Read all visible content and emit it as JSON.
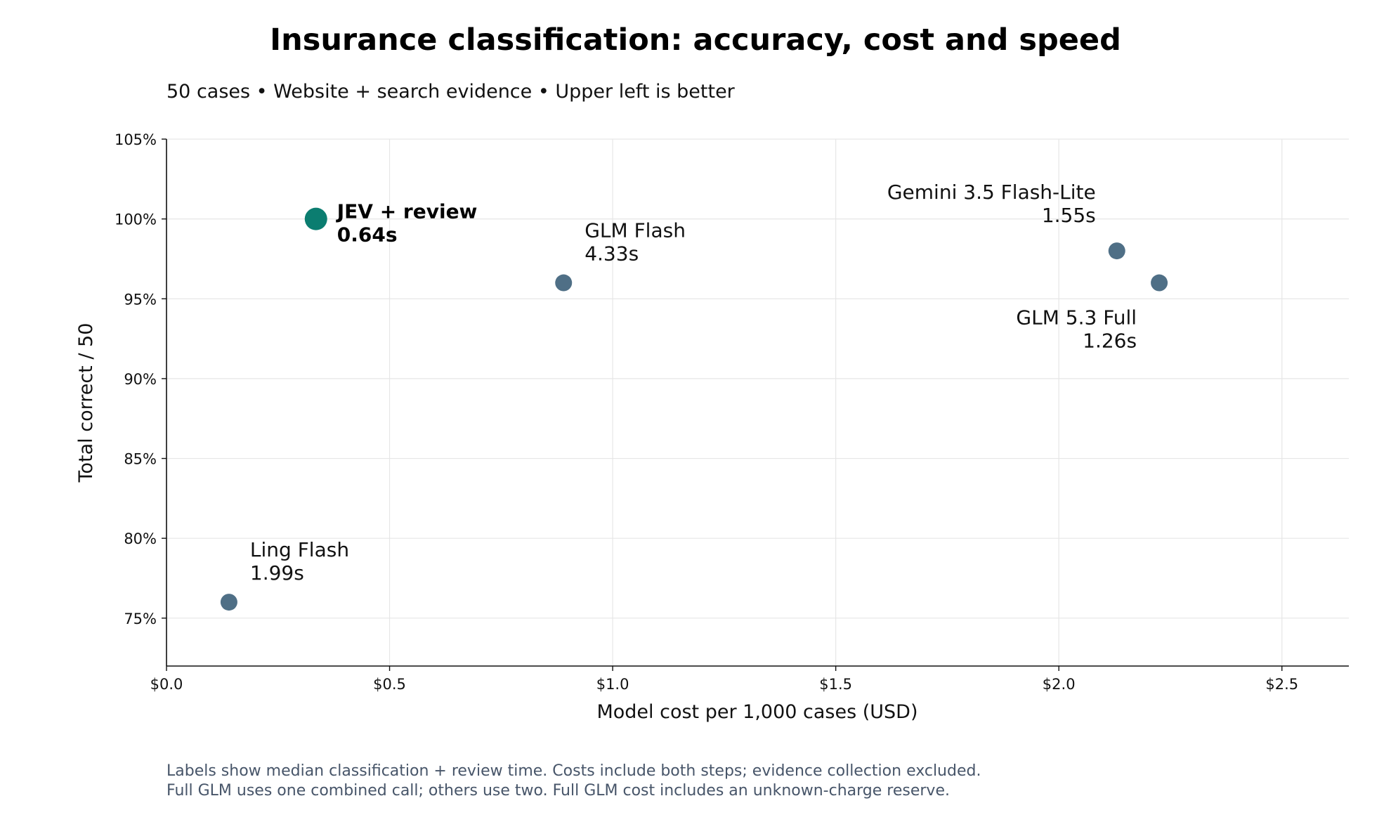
{
  "chart_data": {
    "type": "scatter",
    "title": "Insurance classification: accuracy, cost and speed",
    "subtitle": "50 cases • Website + search evidence • Upper left is better",
    "xlabel": "Model cost per 1,000 cases (USD)",
    "ylabel": "Total correct / 50",
    "xlim": [
      0,
      2.65
    ],
    "ylim": [
      72,
      105
    ],
    "x_ticks": [
      {
        "value": 0.0,
        "label": "$0.0"
      },
      {
        "value": 0.5,
        "label": "$0.5"
      },
      {
        "value": 1.0,
        "label": "$1.0"
      },
      {
        "value": 1.5,
        "label": "$1.5"
      },
      {
        "value": 2.0,
        "label": "$2.0"
      },
      {
        "value": 2.5,
        "label": "$2.5"
      }
    ],
    "y_ticks": [
      {
        "value": 75,
        "label": "75%"
      },
      {
        "value": 80,
        "label": "80%"
      },
      {
        "value": 85,
        "label": "85%"
      },
      {
        "value": 90,
        "label": "90%"
      },
      {
        "value": 95,
        "label": "95%"
      },
      {
        "value": 100,
        "label": "100%"
      },
      {
        "value": 105,
        "label": "105%"
      }
    ],
    "grid": true,
    "points": [
      {
        "name": "JEV + review",
        "time": "0.64s",
        "x": 0.335,
        "y": 100,
        "highlight": true,
        "label_side": "right"
      },
      {
        "name": "GLM Flash",
        "time": "4.33s",
        "x": 0.89,
        "y": 96,
        "highlight": false,
        "label_side": "upper-right"
      },
      {
        "name": "Gemini 3.5 Flash-Lite",
        "time": "1.55s",
        "x": 2.13,
        "y": 98,
        "highlight": false,
        "label_side": "upper-left"
      },
      {
        "name": "GLM 5.3 Full",
        "time": "1.26s",
        "x": 2.225,
        "y": 96,
        "highlight": false,
        "label_side": "lower-left"
      },
      {
        "name": "Ling Flash",
        "time": "1.99s",
        "x": 0.14,
        "y": 76,
        "highlight": false,
        "label_side": "upper-right"
      }
    ],
    "colors": {
      "highlight": "#0b7d70",
      "default": "#4f6f86"
    },
    "footnotes": [
      "Labels show median classification + review time. Costs include both steps; evidence collection excluded.",
      "Full GLM uses one combined call; others use two. Full GLM cost includes an unknown-charge reserve."
    ]
  }
}
